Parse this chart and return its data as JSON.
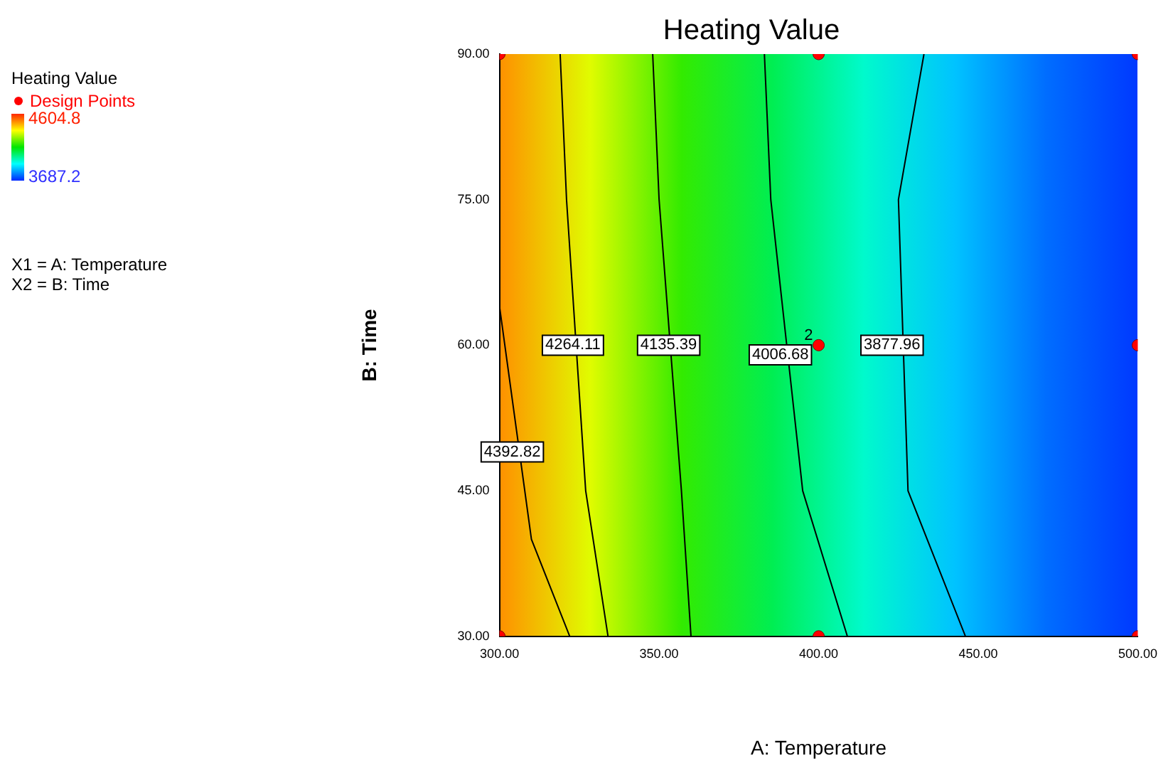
{
  "chart_data": {
    "type": "scatter",
    "title": "Heating Value",
    "xlabel": "A: Temperature",
    "ylabel": "B: Time",
    "clabel": "Heating Value",
    "xlim": [
      300,
      500
    ],
    "ylim": [
      30,
      90
    ],
    "xticks": [
      {
        "value": 300,
        "label": "300.00"
      },
      {
        "value": 350,
        "label": "350.00"
      },
      {
        "value": 400,
        "label": "400.00"
      },
      {
        "value": 450,
        "label": "450.00"
      },
      {
        "value": 500,
        "label": "500.00"
      }
    ],
    "yticks": [
      {
        "value": 30,
        "label": "30.00"
      },
      {
        "value": 45,
        "label": "45.00"
      },
      {
        "value": 60,
        "label": "60.00"
      },
      {
        "value": 75,
        "label": "75.00"
      },
      {
        "value": 90,
        "label": "90.00"
      }
    ],
    "clim": [
      3687.2,
      4604.8
    ],
    "cticks": [
      4604.8,
      3687.2
    ],
    "legend": "top left",
    "grid": false,
    "series": [
      {
        "type": "line",
        "color": "#000000",
        "x": [
          300,
          310,
          322
        ],
        "values": [
          64,
          40,
          30
        ]
      },
      {
        "type": "line",
        "color": "#000000",
        "x": [
          319,
          321,
          327,
          334
        ],
        "values": [
          90,
          75,
          45,
          30
        ]
      },
      {
        "type": "line",
        "color": "#000000",
        "x": [
          348,
          350,
          357,
          360
        ],
        "values": [
          90,
          75,
          45,
          30
        ]
      },
      {
        "type": "line",
        "color": "#000000",
        "x": [
          383,
          385,
          395,
          409
        ],
        "values": [
          90,
          75,
          45,
          30
        ]
      },
      {
        "type": "line",
        "color": "#000000",
        "x": [
          433,
          425,
          428,
          446
        ],
        "values": [
          90,
          75,
          45,
          30
        ]
      },
      {
        "type": "scatter",
        "name": "Design Points",
        "color": "#ff0000",
        "marker": "circle",
        "x": [
          300,
          400,
          500,
          500,
          400,
          300,
          400,
          500
        ],
        "values": [
          90,
          90,
          90,
          60,
          60,
          30,
          30,
          30
        ]
      }
    ],
    "annotations": [
      {
        "text": "4392.82",
        "x": 304,
        "y": 49
      },
      {
        "text": "4264.11",
        "x": 323,
        "y": 60
      },
      {
        "text": "4135.39",
        "x": 353,
        "y": 60
      },
      {
        "text": "4006.68",
        "x": 388,
        "y": 59
      },
      {
        "text": "3877.96",
        "x": 423,
        "y": 60
      },
      {
        "text": "2",
        "x": 400,
        "y": 60
      },
      "X1 = A: Temperature",
      "X2 = B: Time"
    ]
  }
}
